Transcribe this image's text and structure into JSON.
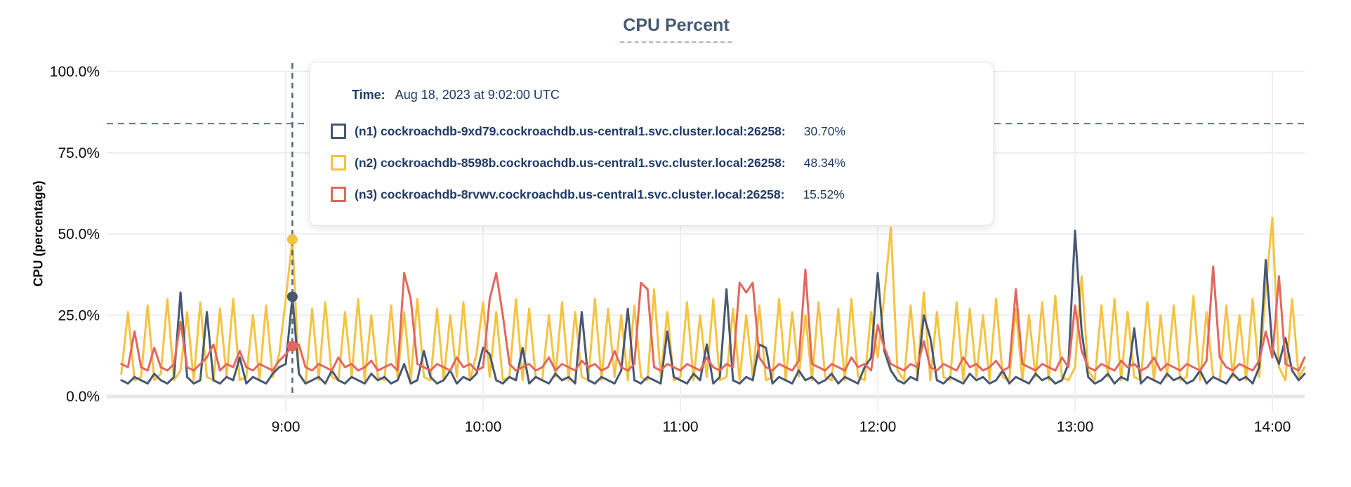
{
  "title": "CPU Percent",
  "tooltip": {
    "time_label": "Time:",
    "time_value": "Aug 18, 2023 at 9:02:00 UTC",
    "series": [
      {
        "name": "(n1) cockroachdb-9xd79.cockroachdb.us-central1.svc.cluster.local:26258:",
        "value": "30.70%",
        "color": "#475872"
      },
      {
        "name": "(n2) cockroachdb-8598b.cockroachdb.us-central1.svc.cluster.local:26258:",
        "value": "48.34%",
        "color": "#F5C342"
      },
      {
        "name": "(n3) cockroachdb-8rvwv.cockroachdb.us-central1.svc.cluster.local:26258:",
        "value": "15.52%",
        "color": "#E2675E"
      }
    ]
  },
  "chart_data": {
    "type": "line",
    "title": "CPU Percent",
    "ylabel": "CPU (percentage)",
    "ylim": [
      0,
      100
    ],
    "grid": true,
    "y_ticks": [
      "0.0%",
      "25.0%",
      "50.0%",
      "75.0%",
      "100.0%"
    ],
    "y_tick_values": [
      0,
      25,
      50,
      75,
      100
    ],
    "x_ticks": [
      "9:00",
      "10:00",
      "11:00",
      "12:00",
      "13:00",
      "14:00"
    ],
    "x_tick_hours": [
      9,
      10,
      11,
      12,
      13,
      14
    ],
    "x_range": "approx 8:10 to 14:10 UTC",
    "threshold_pct": 84,
    "threshold_style": "dashed horizontal line",
    "hover_time_min": 542,
    "hover_time_label": "Aug 18, 2023 at 9:02:00 UTC",
    "x_start_min": 490,
    "x_step_min": 2,
    "series": [
      {
        "name": "(n1) cockroachdb-9xd79.cockroachdb.us-central1.svc.cluster.local:26258",
        "color": "#475872",
        "hover_value": 30.7,
        "values": [
          5,
          4,
          6,
          5,
          4,
          7,
          5,
          4,
          6,
          32,
          6,
          4,
          5,
          26,
          5,
          4,
          6,
          5,
          12,
          4,
          6,
          5,
          4,
          7,
          9,
          10,
          30.7,
          7,
          4,
          5,
          6,
          4,
          8,
          5,
          4,
          6,
          5,
          4,
          7,
          5,
          6,
          4,
          5,
          10,
          4,
          5,
          14,
          6,
          4,
          5,
          8,
          4,
          6,
          5,
          7,
          15,
          13,
          5,
          4,
          6,
          5,
          15,
          4,
          6,
          5,
          4,
          7,
          5,
          6,
          4,
          26,
          5,
          4,
          6,
          5,
          4,
          8,
          27,
          5,
          4,
          6,
          5,
          4,
          20,
          6,
          5,
          4,
          7,
          5,
          16,
          4,
          6,
          33,
          5,
          4,
          6,
          5,
          16,
          15,
          4,
          6,
          5,
          4,
          8,
          5,
          6,
          4,
          5,
          7,
          4,
          6,
          5,
          4,
          9,
          12,
          38,
          14,
          8,
          5,
          4,
          6,
          5,
          25,
          18,
          5,
          4,
          6,
          5,
          4,
          7,
          5,
          6,
          4,
          5,
          8,
          4,
          6,
          5,
          4,
          7,
          5,
          6,
          4,
          5,
          10,
          51,
          20,
          6,
          4,
          5,
          7,
          4,
          6,
          5,
          21,
          4,
          6,
          5,
          4,
          7,
          5,
          6,
          4,
          5,
          8,
          4,
          6,
          5,
          4,
          7,
          5,
          6,
          4,
          9,
          42,
          15,
          10,
          18,
          8,
          5,
          7
        ]
      },
      {
        "name": "(n2) cockroachdb-8598b.cockroachdb.us-central1.svc.cluster.local:26258",
        "color": "#F5C342",
        "hover_value": 48.34,
        "values": [
          7,
          26,
          5,
          6,
          28,
          5,
          7,
          30,
          5,
          8,
          26,
          5,
          29,
          6,
          5,
          27,
          6,
          30,
          5,
          6,
          25,
          5,
          28,
          6,
          13,
          30,
          48.3,
          7,
          4,
          27,
          5,
          29,
          6,
          5,
          26,
          6,
          30,
          5,
          25,
          6,
          5,
          28,
          6,
          26,
          5,
          30,
          6,
          5,
          27,
          5,
          25,
          6,
          29,
          5,
          13,
          29,
          6,
          26,
          5,
          6,
          30,
          5,
          27,
          6,
          5,
          25,
          6,
          29,
          5,
          26,
          6,
          5,
          30,
          5,
          27,
          6,
          25,
          5,
          28,
          6,
          5,
          33,
          6,
          26,
          5,
          6,
          29,
          5,
          25,
          6,
          30,
          5,
          6,
          27,
          5,
          25,
          6,
          28,
          5,
          6,
          30,
          5,
          26,
          6,
          25,
          5,
          29,
          6,
          5,
          27,
          5,
          30,
          6,
          5,
          26,
          12,
          31,
          52,
          8,
          5,
          28,
          6,
          32,
          5,
          26,
          6,
          5,
          29,
          5,
          27,
          6,
          25,
          5,
          30,
          6,
          5,
          27,
          5,
          25,
          6,
          29,
          5,
          31,
          6,
          5,
          9,
          37,
          8,
          5,
          28,
          6,
          30,
          5,
          26,
          6,
          5,
          29,
          5,
          25,
          6,
          28,
          5,
          6,
          31,
          5,
          26,
          6,
          5,
          28,
          6,
          25,
          5,
          30,
          6,
          33,
          55,
          9,
          5,
          30,
          6,
          9
        ]
      },
      {
        "name": "(n3) cockroachdb-8rvwv.cockroachdb.us-central1.svc.cluster.local:26258",
        "color": "#E2675E",
        "hover_value": 15.52,
        "values": [
          10,
          9,
          20,
          9,
          8,
          15,
          9,
          8,
          10,
          23,
          9,
          8,
          10,
          12,
          16,
          8,
          10,
          9,
          14,
          9,
          8,
          10,
          9,
          8,
          11,
          13,
          15.5,
          16,
          9,
          8,
          10,
          9,
          8,
          12,
          9,
          10,
          8,
          9,
          11,
          8,
          9,
          10,
          8,
          38,
          30,
          10,
          9,
          8,
          10,
          9,
          8,
          12,
          9,
          10,
          8,
          9,
          30,
          38,
          25,
          10,
          8,
          9,
          10,
          8,
          9,
          12,
          8,
          10,
          9,
          8,
          11,
          9,
          10,
          8,
          9,
          14,
          9,
          8,
          10,
          35,
          33,
          9,
          8,
          10,
          9,
          8,
          10,
          9,
          8,
          12,
          9,
          8,
          10,
          9,
          35,
          32,
          35,
          12,
          9,
          8,
          10,
          9,
          8,
          11,
          39,
          10,
          9,
          8,
          10,
          9,
          8,
          12,
          9,
          10,
          8,
          22,
          15,
          10,
          9,
          8,
          10,
          9,
          17,
          9,
          8,
          10,
          9,
          8,
          12,
          9,
          10,
          8,
          9,
          11,
          8,
          9,
          33,
          10,
          9,
          8,
          10,
          9,
          8,
          12,
          9,
          28,
          14,
          9,
          8,
          10,
          9,
          8,
          11,
          9,
          10,
          8,
          9,
          12,
          8,
          10,
          9,
          8,
          10,
          9,
          8,
          11,
          40,
          12,
          9,
          8,
          10,
          9,
          8,
          11,
          20,
          12,
          37,
          10,
          9,
          8,
          12
        ]
      }
    ]
  },
  "colors": {
    "title": "#475872",
    "tooltip_text": "#1d3a66",
    "grid": "#EDEDEF",
    "threshold_line": "#5d7689",
    "hover_line": "#4f6b7d",
    "series_n1": "#475872",
    "series_n2": "#F5C342",
    "series_n3": "#E2675E"
  }
}
